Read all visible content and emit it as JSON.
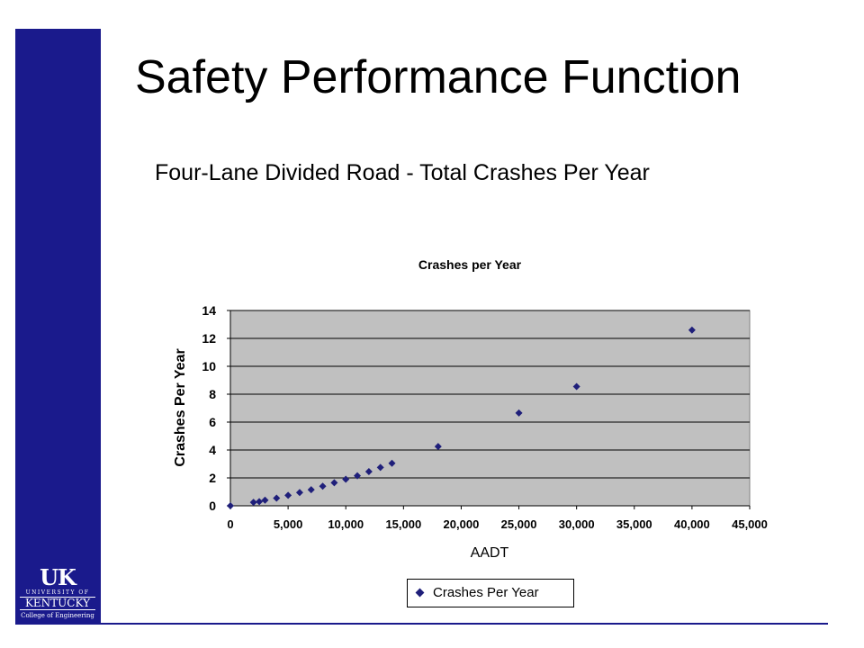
{
  "slide": {
    "title": "Safety Performance Function",
    "subtitle": "Four-Lane Divided Road - Total Crashes Per Year"
  },
  "logo": {
    "mark": "UK",
    "university_of": "UNIVERSITY OF",
    "kentucky": "KENTUCKY",
    "college": "College of Engineering"
  },
  "colors": {
    "brand_blue": "#1a1a8c",
    "plot_background": "#c0c0c0",
    "marker": "#1f1f7a"
  },
  "chart_data": {
    "type": "scatter",
    "title": "Crashes per Year",
    "xlabel": "AADT",
    "ylabel": "Crashes Per Year",
    "xlim": [
      0,
      45000
    ],
    "ylim": [
      0,
      14
    ],
    "xticks": [
      "0",
      "5,000",
      "10,000",
      "15,000",
      "20,000",
      "25,000",
      "30,000",
      "35,000",
      "40,000",
      "45,000"
    ],
    "yticks": [
      "0",
      "2",
      "4",
      "6",
      "8",
      "10",
      "12",
      "14"
    ],
    "xtick_values": [
      0,
      5000,
      10000,
      15000,
      20000,
      25000,
      30000,
      35000,
      40000,
      45000
    ],
    "ytick_values": [
      0,
      2,
      4,
      6,
      8,
      10,
      12,
      14
    ],
    "grid": "horizontal",
    "legend_position": "bottom",
    "series": [
      {
        "name": "Crashes Per Year",
        "marker": "diamond",
        "x": [
          0,
          2000,
          2500,
          3000,
          4000,
          5000,
          6000,
          7000,
          8000,
          9000,
          10000,
          11000,
          12000,
          13000,
          14000,
          18000,
          25000,
          30000,
          40000
        ],
        "y": [
          0,
          0.25,
          0.3,
          0.4,
          0.55,
          0.75,
          0.95,
          1.15,
          1.4,
          1.65,
          1.9,
          2.15,
          2.45,
          2.75,
          3.05,
          4.25,
          6.65,
          8.55,
          12.6
        ]
      }
    ]
  }
}
